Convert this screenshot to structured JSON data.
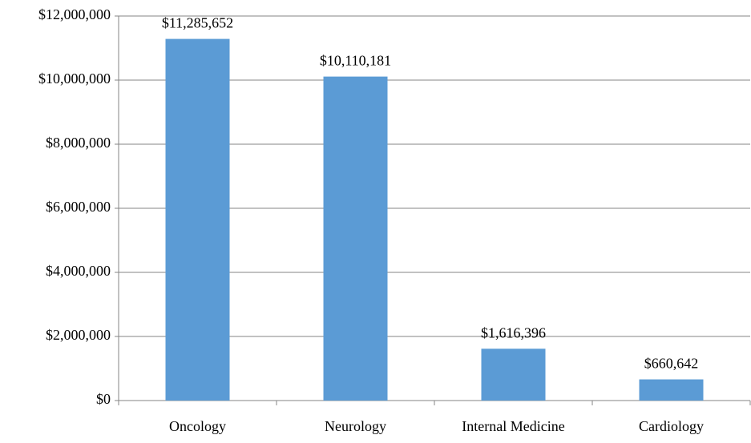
{
  "chart_data": {
    "type": "bar",
    "categories": [
      "Oncology",
      "Neurology",
      "Internal Medicine",
      "Cardiology"
    ],
    "values": [
      11285652,
      10110181,
      1616396,
      660642
    ],
    "value_labels": [
      "$11,285,652",
      "$10,110,181",
      "$1,616,396",
      "$660,642"
    ],
    "color": "#5b9bd5",
    "ylim": [
      0,
      12000000
    ],
    "yticks": [
      {
        "value": 0,
        "label": "$0"
      },
      {
        "value": 2000000,
        "label": "$2,000,000"
      },
      {
        "value": 4000000,
        "label": "$4,000,000"
      },
      {
        "value": 6000000,
        "label": "$6,000,000"
      },
      {
        "value": 8000000,
        "label": "$8,000,000"
      },
      {
        "value": 10000000,
        "label": "$10,000,000"
      },
      {
        "value": 12000000,
        "label": "$12,000,000"
      }
    ],
    "grid": true
  }
}
